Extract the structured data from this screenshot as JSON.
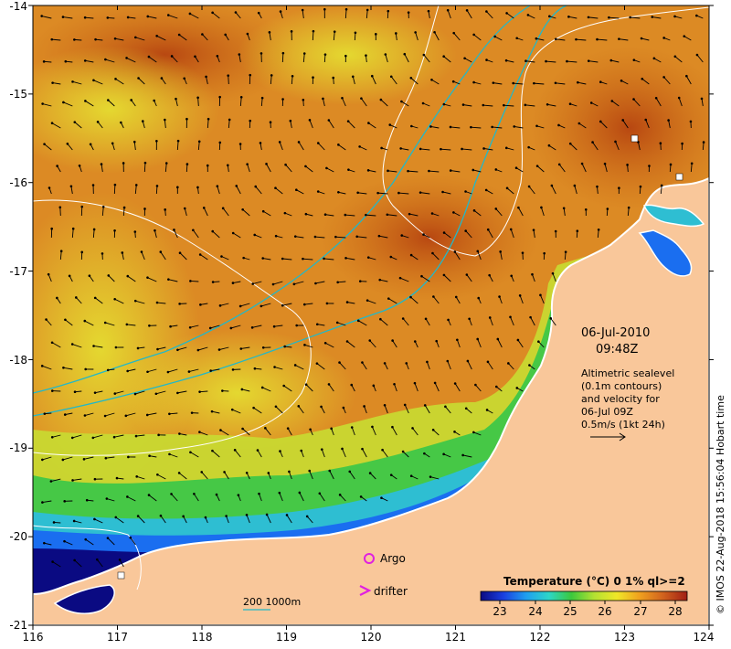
{
  "map": {
    "lon_ticks": [
      "116",
      "117",
      "118",
      "119",
      "120",
      "121",
      "122",
      "123",
      "124"
    ],
    "lat_ticks": [
      "-14",
      "-15",
      "-16",
      "-17",
      "-18",
      "-19",
      "-20",
      "-21"
    ],
    "lon_range": [
      116,
      124
    ],
    "lat_range": [
      -21,
      -14
    ]
  },
  "annotation": {
    "date": "06-Jul-2010",
    "time": "09:48Z",
    "desc_line1": "Altimetric sealevel",
    "desc_line2": "(0.1m contours)",
    "desc_line3": "and velocity for",
    "desc_line4": "06-Jul 09Z",
    "scale_label": "0.5m/s (1kt 24h)"
  },
  "legend": {
    "argo_label": "Argo",
    "drifter_label": "drifter",
    "depth_label": "200  1000m"
  },
  "colorbar": {
    "title": "Temperature (°C) 0 1% ql>=2",
    "ticks": [
      "23",
      "24",
      "25",
      "26",
      "27",
      "28"
    ],
    "colors": [
      "#0a0a82",
      "#1a3fe0",
      "#1f9ef0",
      "#2dd6c8",
      "#3cc83c",
      "#b4e132",
      "#f0e628",
      "#f0a01e",
      "#d2641e",
      "#a01e14"
    ]
  },
  "credit": "© IMOS 22-Aug-2018 15:56:04 Hobart time",
  "colors": {
    "land": "#f9c79a",
    "coast": "#ffffff",
    "contour": "#ffffff",
    "isobath": "#22b8c8",
    "argo": "#e020e0",
    "drifter": "#e020e0"
  }
}
